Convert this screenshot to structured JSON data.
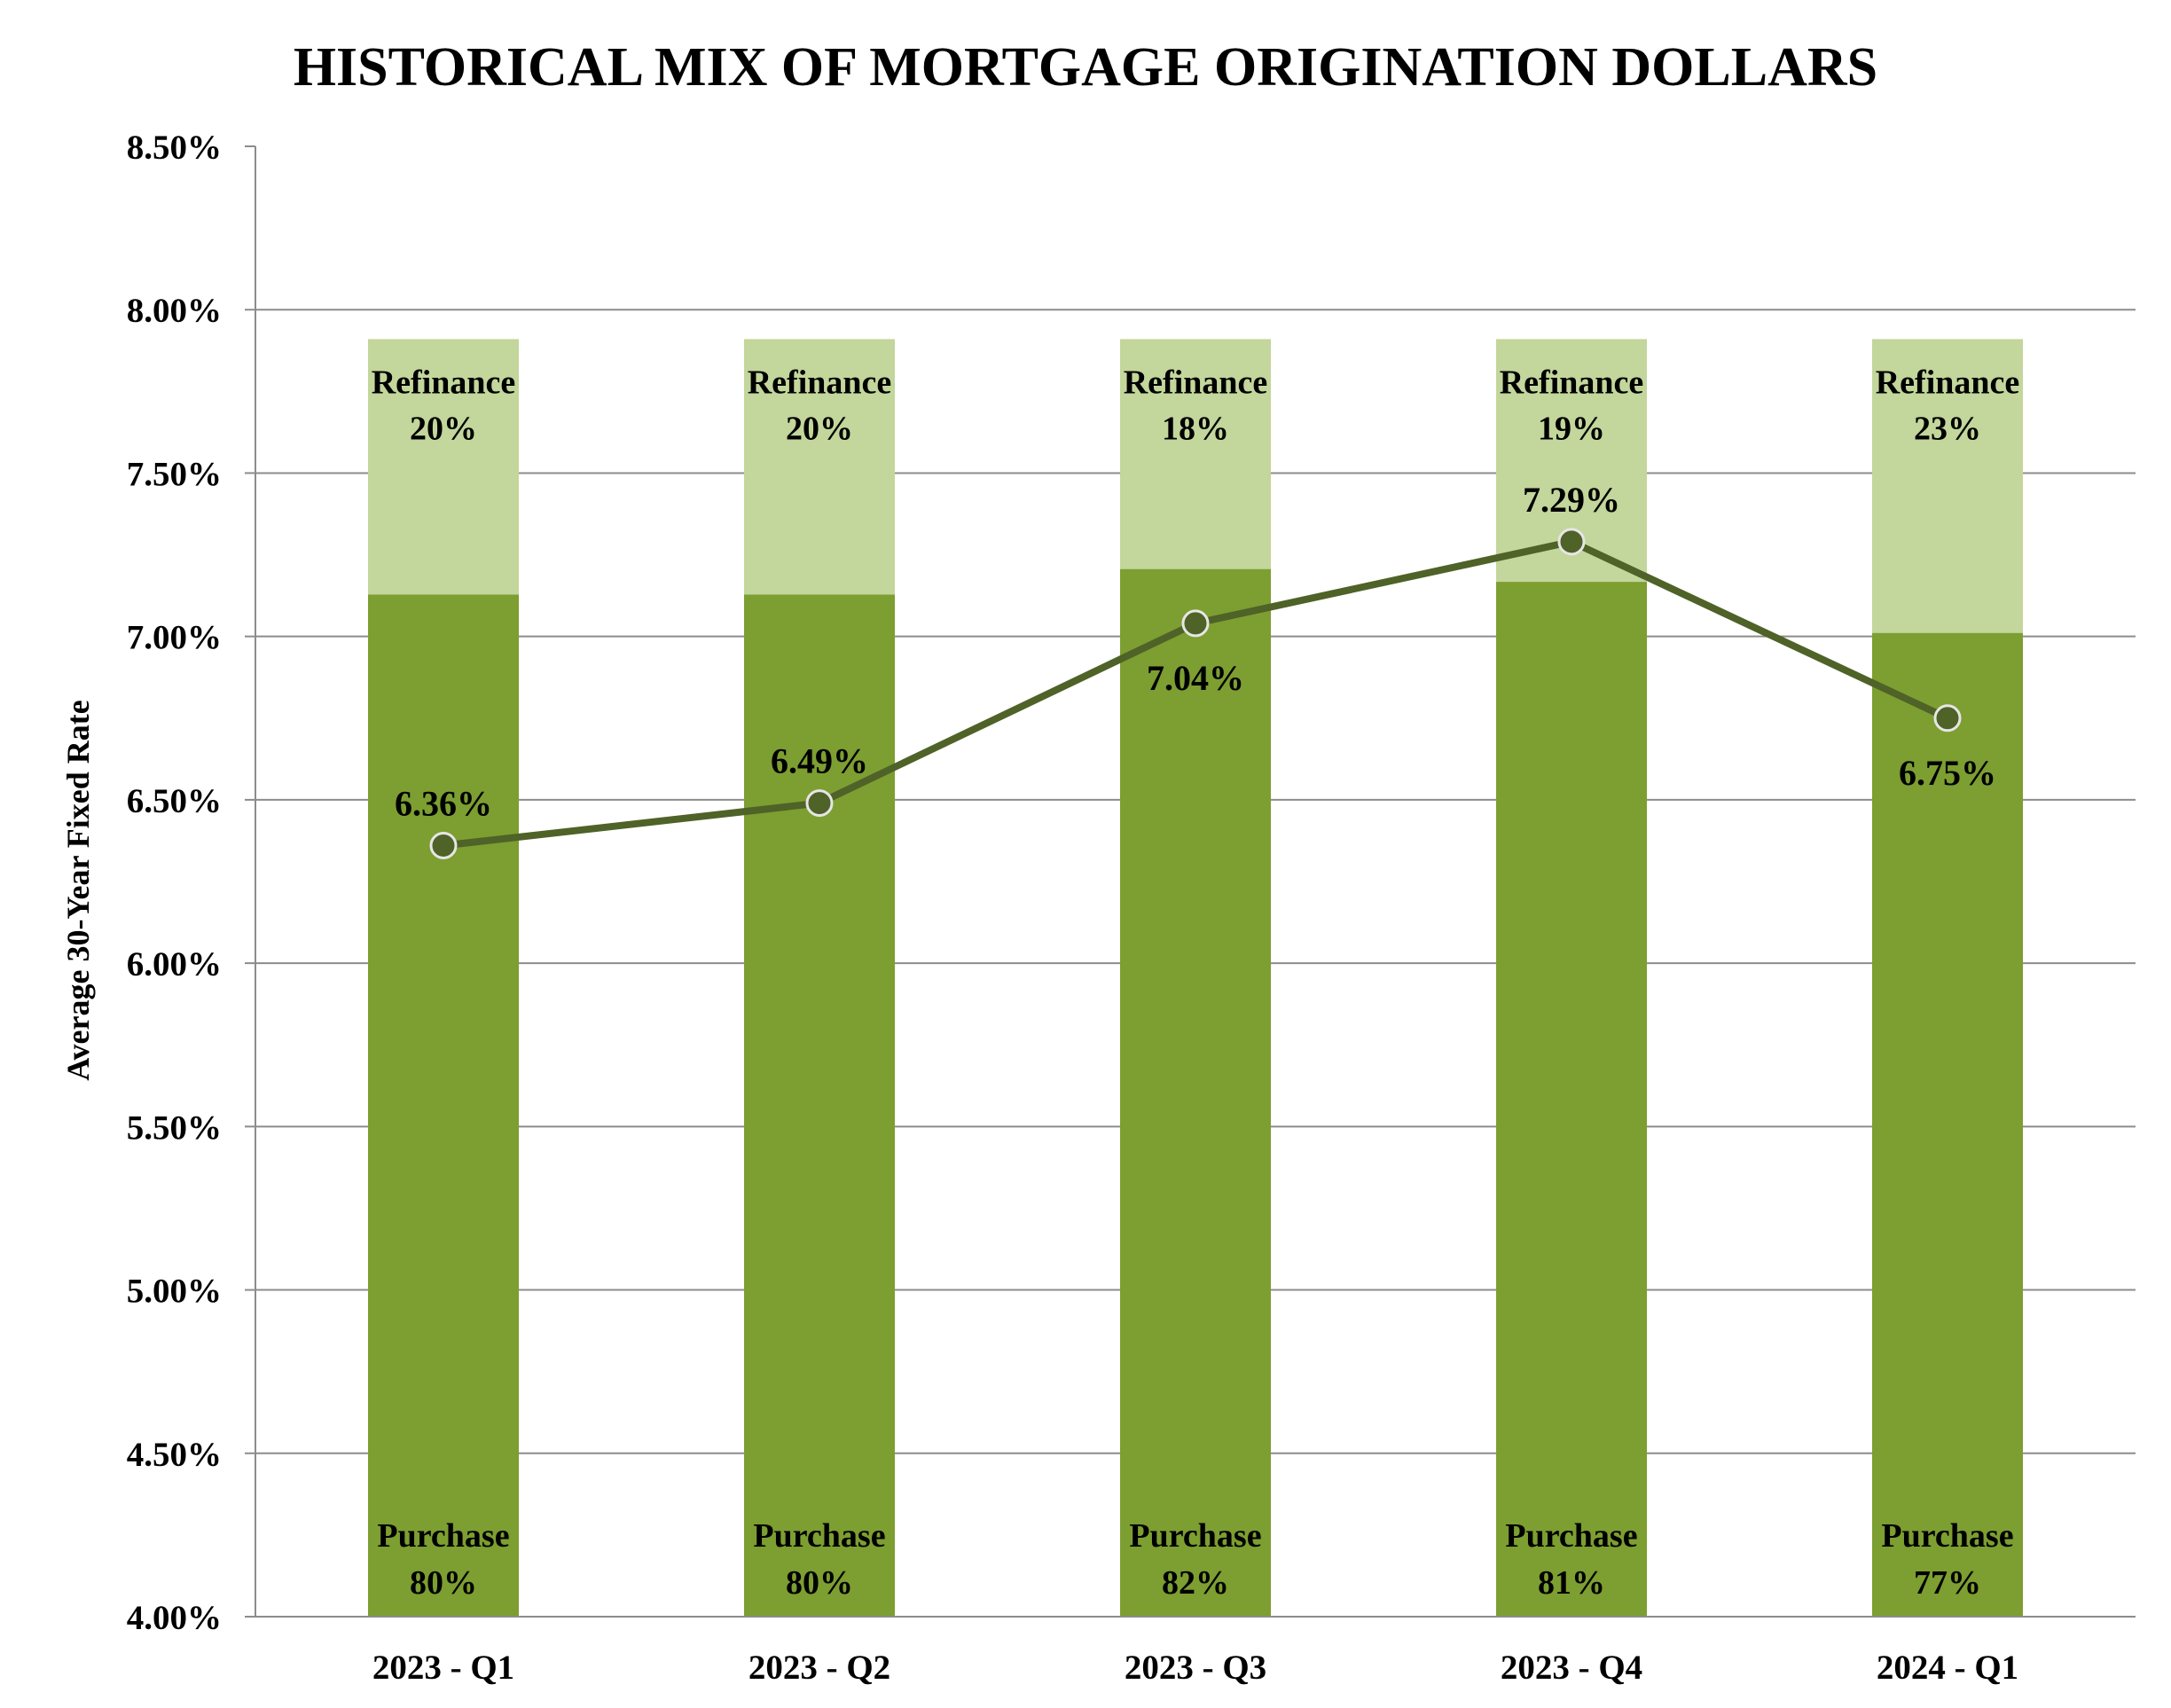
{
  "chart_data": {
    "type": "bar",
    "title": "HISTORICAL MIX OF MORTGAGE ORIGINATION DOLLARS",
    "ylabel": "Average 30-Year Fixed Rate",
    "xlabel": "",
    "ylim": [
      4.0,
      8.5
    ],
    "yticks": [
      "4.00%",
      "4.50%",
      "5.00%",
      "5.50%",
      "6.00%",
      "6.50%",
      "7.00%",
      "7.50%",
      "8.00%",
      "8.50%"
    ],
    "grid": true,
    "categories": [
      "2023 - Q1",
      "2023 - Q2",
      "2023 - Q3",
      "2023 - Q4",
      "2024 - Q1"
    ],
    "stack_top": 7.91,
    "series": [
      {
        "label": "Purchase",
        "kind": "stacked-bar",
        "share_labels": [
          "80%",
          "80%",
          "82%",
          "81%",
          "77%"
        ],
        "shares": [
          80,
          80,
          82,
          81,
          77
        ],
        "color": "#7d9e31"
      },
      {
        "label": "Refinance",
        "kind": "stacked-bar",
        "share_labels": [
          "20%",
          "20%",
          "18%",
          "19%",
          "23%"
        ],
        "shares": [
          20,
          20,
          18,
          19,
          23
        ],
        "color": "#c3d69b"
      },
      {
        "kind": "line",
        "values": [
          6.36,
          6.49,
          7.04,
          7.29,
          6.75
        ],
        "value_labels": [
          "6.36%",
          "6.49%",
          "7.04%",
          "7.29%",
          "6.75%"
        ],
        "label_side": [
          "above",
          "above",
          "below",
          "above",
          "below"
        ],
        "color": "#4f6228"
      }
    ]
  }
}
